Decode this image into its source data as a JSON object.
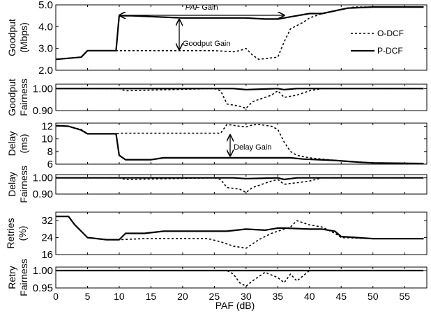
{
  "chart_data": [
    {
      "type": "line",
      "ylabel_lines": [
        "Goodput",
        "(Mbps)"
      ],
      "ylim": [
        2.0,
        5.0
      ],
      "yticks": [
        "5.0",
        "4.0",
        "3.0",
        "2.0"
      ],
      "ytick_values": [
        5.0,
        4.0,
        3.0,
        2.0
      ],
      "legend": {
        "placement": "right",
        "items": [
          "O-DCF",
          "P-DCF"
        ]
      },
      "annotations": {
        "paf_gain_prefix": "PAF",
        "paf_gain_suffix": " Gain",
        "goodput_gain": "Goodput Gain"
      },
      "series": [
        {
          "name": "O-DCF",
          "style": "dashed",
          "x": [
            0,
            4,
            5,
            9.5,
            10,
            25,
            28,
            29,
            30,
            31,
            32,
            35,
            36,
            37,
            39,
            40,
            42,
            47,
            58
          ],
          "y": [
            2.5,
            2.6,
            2.9,
            2.9,
            2.9,
            2.9,
            2.85,
            2.9,
            3.0,
            2.7,
            2.5,
            2.6,
            3.3,
            3.9,
            4.2,
            4.4,
            4.6,
            4.9,
            4.9
          ]
        },
        {
          "name": "P-DCF",
          "style": "solid",
          "x": [
            0,
            4,
            5,
            9.5,
            10,
            12,
            20,
            27,
            30,
            33,
            35,
            37,
            40,
            42,
            46,
            50,
            58
          ],
          "y": [
            2.5,
            2.6,
            2.9,
            2.9,
            4.5,
            4.5,
            4.4,
            4.4,
            4.4,
            4.35,
            4.35,
            4.45,
            4.6,
            4.6,
            4.85,
            4.9,
            4.9
          ]
        }
      ]
    },
    {
      "type": "line",
      "ylabel_lines": [
        "Goodput",
        "Fairness"
      ],
      "ylim": [
        0.9,
        1.02
      ],
      "yticks": [
        "1.00",
        "0.90"
      ],
      "ytick_values": [
        1.0,
        0.9
      ],
      "series": [
        {
          "name": "O-DCF",
          "style": "dashed",
          "x": [
            0,
            10,
            11,
            25,
            26,
            27,
            29,
            30,
            31,
            34,
            35,
            36,
            38,
            40,
            42,
            58
          ],
          "y": [
            1.0,
            1.0,
            0.99,
            1.0,
            0.99,
            0.93,
            0.92,
            0.91,
            0.94,
            0.97,
            0.99,
            0.96,
            0.97,
            0.99,
            1.0,
            1.0
          ]
        },
        {
          "name": "P-DCF",
          "style": "solid",
          "x": [
            0,
            20,
            28,
            30,
            35,
            36,
            38,
            58
          ],
          "y": [
            1.0,
            1.0,
            1.0,
            0.995,
            1.0,
            0.995,
            1.0,
            1.0
          ]
        }
      ]
    },
    {
      "type": "line",
      "ylabel_lines": [
        "Delay",
        "(ms)"
      ],
      "ylim": [
        6,
        12.5
      ],
      "yticks": [
        "12",
        "10",
        "8",
        "6"
      ],
      "ytick_values": [
        12,
        10,
        8,
        6
      ],
      "annotations": {
        "delay_gain": "Delay Gain"
      },
      "series": [
        {
          "name": "O-DCF",
          "style": "dashed",
          "x": [
            0,
            2,
            4,
            5,
            9.5,
            10,
            26,
            27,
            29,
            30,
            31,
            32,
            34,
            35,
            36,
            37,
            38,
            40,
            44,
            50,
            58
          ],
          "y": [
            12.1,
            12.0,
            11.5,
            10.8,
            10.8,
            10.9,
            10.9,
            12.3,
            12.0,
            11.9,
            12.2,
            12.3,
            12.0,
            11.5,
            9.5,
            8.0,
            7.4,
            7.0,
            6.6,
            6.2,
            6.1
          ]
        },
        {
          "name": "P-DCF",
          "style": "solid",
          "x": [
            0,
            2,
            4,
            5,
            9.5,
            10,
            11,
            15,
            17,
            37,
            39,
            44,
            48,
            50,
            58
          ],
          "y": [
            12.1,
            12.0,
            11.4,
            10.8,
            10.8,
            7.4,
            6.7,
            6.7,
            7.0,
            7.0,
            6.8,
            6.6,
            6.3,
            6.2,
            6.1
          ]
        }
      ]
    },
    {
      "type": "line",
      "ylabel_lines": [
        "Delay",
        "Fairness"
      ],
      "ylim": [
        0.9,
        1.02
      ],
      "yticks": [
        "1.00",
        "0.90"
      ],
      "ytick_values": [
        1.0,
        0.9
      ],
      "series": [
        {
          "name": "O-DCF",
          "style": "dashed",
          "x": [
            0,
            10,
            11,
            25,
            26,
            27,
            29,
            30,
            31,
            34,
            35,
            36,
            38,
            40,
            42,
            58
          ],
          "y": [
            1.0,
            1.0,
            0.99,
            1.0,
            0.99,
            0.94,
            0.93,
            0.91,
            0.94,
            0.98,
            0.99,
            0.96,
            0.97,
            0.98,
            1.0,
            1.0
          ]
        },
        {
          "name": "P-DCF",
          "style": "solid",
          "x": [
            0,
            20,
            28,
            30,
            35,
            36,
            38,
            58
          ],
          "y": [
            1.0,
            1.0,
            1.0,
            0.995,
            1.0,
            0.99,
            1.0,
            1.0
          ]
        }
      ]
    },
    {
      "type": "line",
      "ylabel_lines": [
        "Retries",
        "(%)"
      ],
      "ylim": [
        16,
        36
      ],
      "yticks": [
        "32",
        "24",
        "16"
      ],
      "ytick_values": [
        32,
        24,
        16
      ],
      "series": [
        {
          "name": "O-DCF",
          "style": "dashed",
          "x": [
            0,
            2,
            3,
            4,
            5,
            8,
            10,
            14,
            20,
            24,
            26,
            27,
            28,
            30,
            31,
            32,
            34,
            36,
            37,
            38,
            40,
            42,
            44,
            45,
            50,
            58
          ],
          "y": [
            34,
            34,
            30,
            27,
            24,
            23,
            23,
            23.5,
            23.5,
            23.5,
            22,
            21,
            20,
            19,
            21,
            23,
            26,
            28,
            29,
            32,
            30,
            29,
            26,
            24,
            23.5,
            23.5
          ]
        },
        {
          "name": "P-DCF",
          "style": "solid",
          "x": [
            0,
            2,
            3,
            4,
            5,
            8,
            10,
            11,
            14,
            17,
            27,
            30,
            33,
            35,
            36,
            40,
            42,
            44,
            45,
            50,
            58
          ],
          "y": [
            34,
            34,
            30,
            27,
            24,
            23,
            23,
            26,
            26,
            27,
            27,
            28,
            27.5,
            28.5,
            28.5,
            28,
            28,
            27,
            24.5,
            23.5,
            23.5
          ]
        }
      ]
    },
    {
      "type": "line",
      "ylabel_lines": [
        "Retry",
        "Fairness"
      ],
      "ylim": [
        0.95,
        1.01
      ],
      "yticks": [
        "1.00",
        "0.95"
      ],
      "ytick_values": [
        1.0,
        0.95
      ],
      "xlabel": "PAF (dB)",
      "xticks": [
        "0",
        "5",
        "10",
        "15",
        "20",
        "25",
        "30",
        "35",
        "40",
        "45",
        "50",
        "55"
      ],
      "xtick_values": [
        0,
        5,
        10,
        15,
        20,
        25,
        30,
        35,
        40,
        45,
        50,
        55
      ],
      "xlim": [
        0,
        58.5
      ],
      "series": [
        {
          "name": "O-DCF",
          "style": "dashed",
          "x": [
            0,
            27,
            28,
            29,
            30,
            31,
            33,
            35,
            36,
            37,
            38,
            39,
            40,
            58
          ],
          "y": [
            1.0,
            1.0,
            0.99,
            0.965,
            0.955,
            0.97,
            0.995,
            0.98,
            0.965,
            0.99,
            0.97,
            0.985,
            1.0,
            1.0
          ]
        },
        {
          "name": "P-DCF",
          "style": "solid",
          "x": [
            0,
            58
          ],
          "y": [
            1.0,
            1.0
          ]
        }
      ]
    }
  ]
}
